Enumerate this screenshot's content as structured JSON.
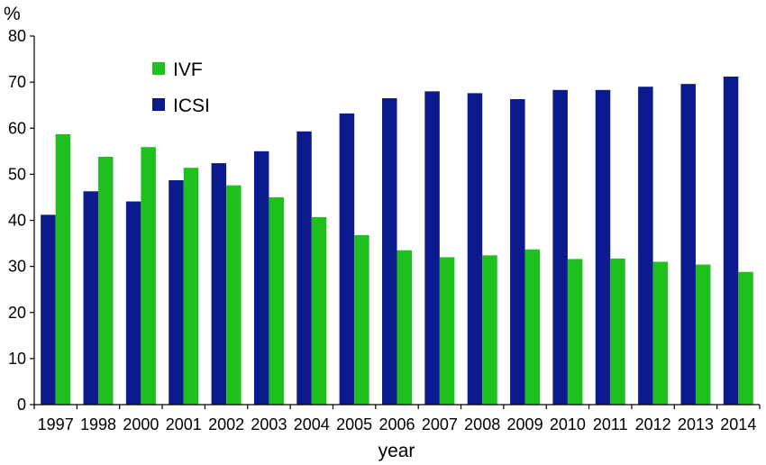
{
  "chart_data": {
    "type": "bar",
    "title": "",
    "xlabel": "year",
    "ylabel": "%",
    "ylim": [
      0,
      80
    ],
    "yticks": [
      "0",
      "10",
      "20",
      "30",
      "40",
      "50",
      "60",
      "70",
      "80"
    ],
    "grid": false,
    "legend_position": "top-left",
    "categories": [
      "1997",
      "1998",
      "2000",
      "2001",
      "2002",
      "2003",
      "2004",
      "2005",
      "2006",
      "2007",
      "2008",
      "2009",
      "2010",
      "2011",
      "2012",
      "2013",
      "2014"
    ],
    "series": [
      {
        "name": "ICSI",
        "color": "#0b1a8c",
        "values": [
          41.2,
          46.3,
          44.1,
          48.7,
          52.4,
          55.0,
          59.3,
          63.2,
          66.5,
          68.0,
          67.6,
          66.3,
          68.3,
          68.3,
          69.0,
          69.6,
          71.2
        ]
      },
      {
        "name": "IVF",
        "color": "#1ec01e",
        "values": [
          58.7,
          53.8,
          55.9,
          51.4,
          47.6,
          45.0,
          40.7,
          36.8,
          33.5,
          32.0,
          32.4,
          33.7,
          31.6,
          31.7,
          31.0,
          30.4,
          28.8
        ]
      }
    ]
  }
}
